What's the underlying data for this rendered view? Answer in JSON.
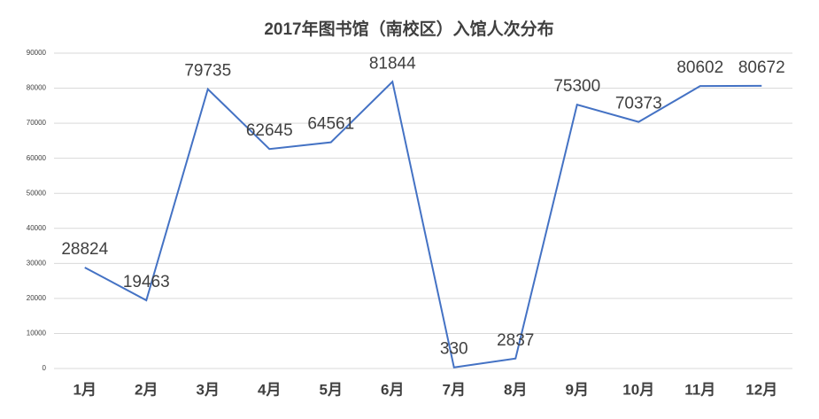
{
  "chart_data": {
    "type": "line",
    "title": "2017年图书馆（南校区）入馆人次分布",
    "categories": [
      "1月",
      "2月",
      "3月",
      "4月",
      "5月",
      "6月",
      "7月",
      "8月",
      "9月",
      "10月",
      "11月",
      "12月"
    ],
    "values": [
      28824,
      19463,
      79735,
      62645,
      64561,
      81844,
      330,
      2837,
      75300,
      70373,
      80602,
      80672
    ],
    "color": "#4472c4",
    "ylim": [
      0,
      90000
    ],
    "yticks": [
      0,
      10000,
      20000,
      30000,
      40000,
      50000,
      60000,
      70000,
      80000,
      90000
    ],
    "grid": true
  }
}
